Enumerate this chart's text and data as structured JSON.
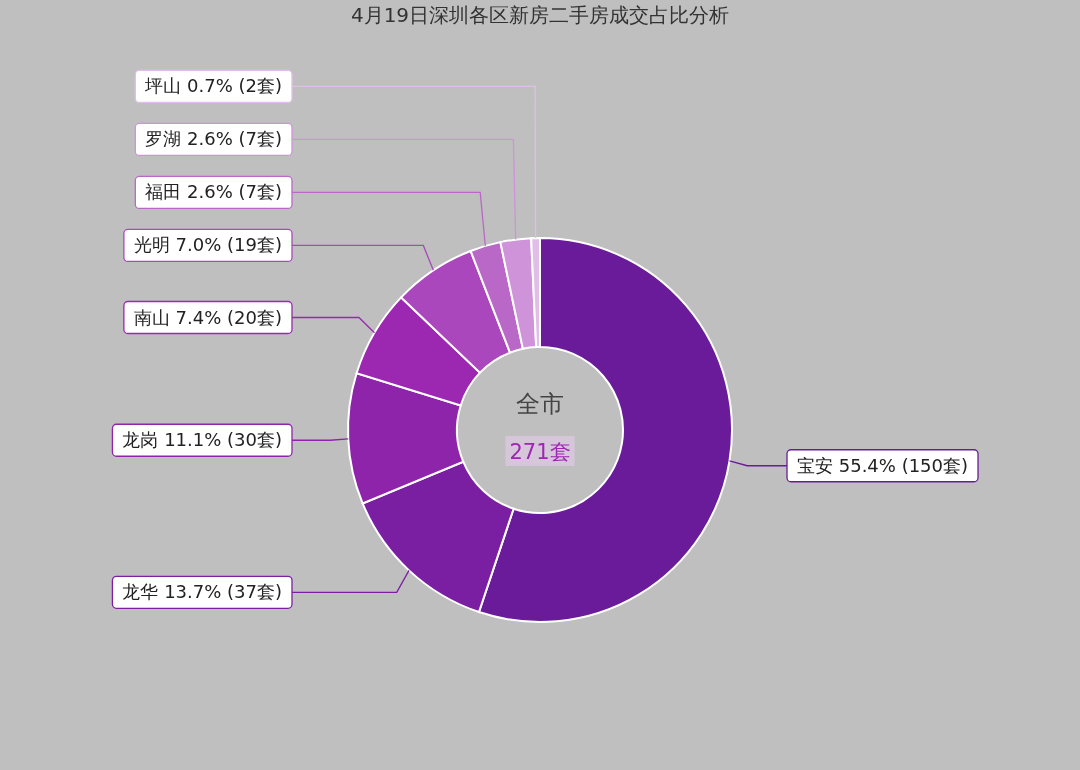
{
  "chart_data": {
    "type": "donut",
    "title": "4月19日深圳各区新房二手房成交占比分析",
    "categories": [
      "宝安",
      "龙华",
      "龙岗",
      "南山",
      "光明",
      "福田",
      "罗湖",
      "坪山"
    ],
    "values": [
      150,
      37,
      30,
      20,
      19,
      7,
      7,
      2
    ],
    "value_labels": [
      "55.4%  (150套)",
      "13.7%  (37套)",
      "11.1%  (30套)",
      "7.4%  (20套)",
      "7.0%  (19套)",
      "2.6%  (7套)",
      "2.6%  (7套)",
      "0.7%  (2套)"
    ],
    "colors": [
      "#6a1b9a",
      "#7b1fa2",
      "#8e24aa",
      "#9c27b0",
      "#ab47bc",
      "#ba68c8",
      "#ce93d8",
      "#e1bee7"
    ],
    "annotations": [
      "全市",
      "271套"
    ]
  }
}
